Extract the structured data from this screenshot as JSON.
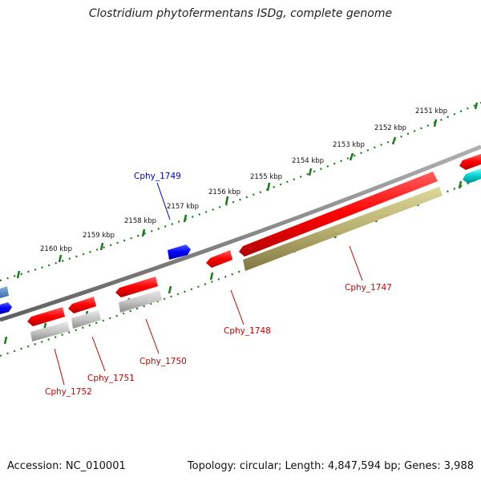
{
  "title": "Clostridium phytofermentans ISDg, complete genome",
  "footer": {
    "accession": "Accession: NC_010001",
    "summary": "Topology: circular; Length: 4,847,594 bp; Genes: 3,988"
  },
  "scale_ticks": [
    {
      "label": "2151 kbp"
    },
    {
      "label": "2152 kbp"
    },
    {
      "label": "2153 kbp"
    },
    {
      "label": "2154 kbp"
    },
    {
      "label": "2155 kbp"
    },
    {
      "label": "2156 kbp"
    },
    {
      "label": "2157 kbp"
    },
    {
      "label": "2158 kbp"
    },
    {
      "label": "2159 kbp"
    },
    {
      "label": "2160 kbp"
    }
  ],
  "gene_labels": [
    {
      "name": "Cphy_1747",
      "color": "#cc0000"
    },
    {
      "name": "Cphy_1748",
      "color": "#cc0000"
    },
    {
      "name": "Cphy_1749",
      "color": "#0000cc"
    },
    {
      "name": "Cphy_1750",
      "color": "#cc0000"
    },
    {
      "name": "Cphy_1751",
      "color": "#cc0000"
    },
    {
      "name": "Cphy_1752",
      "color": "#cc0000"
    }
  ],
  "colors": {
    "backbone": "#808080",
    "reverse_gene": "#ff0000",
    "forward_gene": "#0000ff",
    "forward_gene_light": "#4a7fc0",
    "cyan_gene": "#00cccc",
    "cds_gray": "#bdbdbd",
    "cds_olive": "#b8b070",
    "tick_green": "#1a7a1a"
  }
}
